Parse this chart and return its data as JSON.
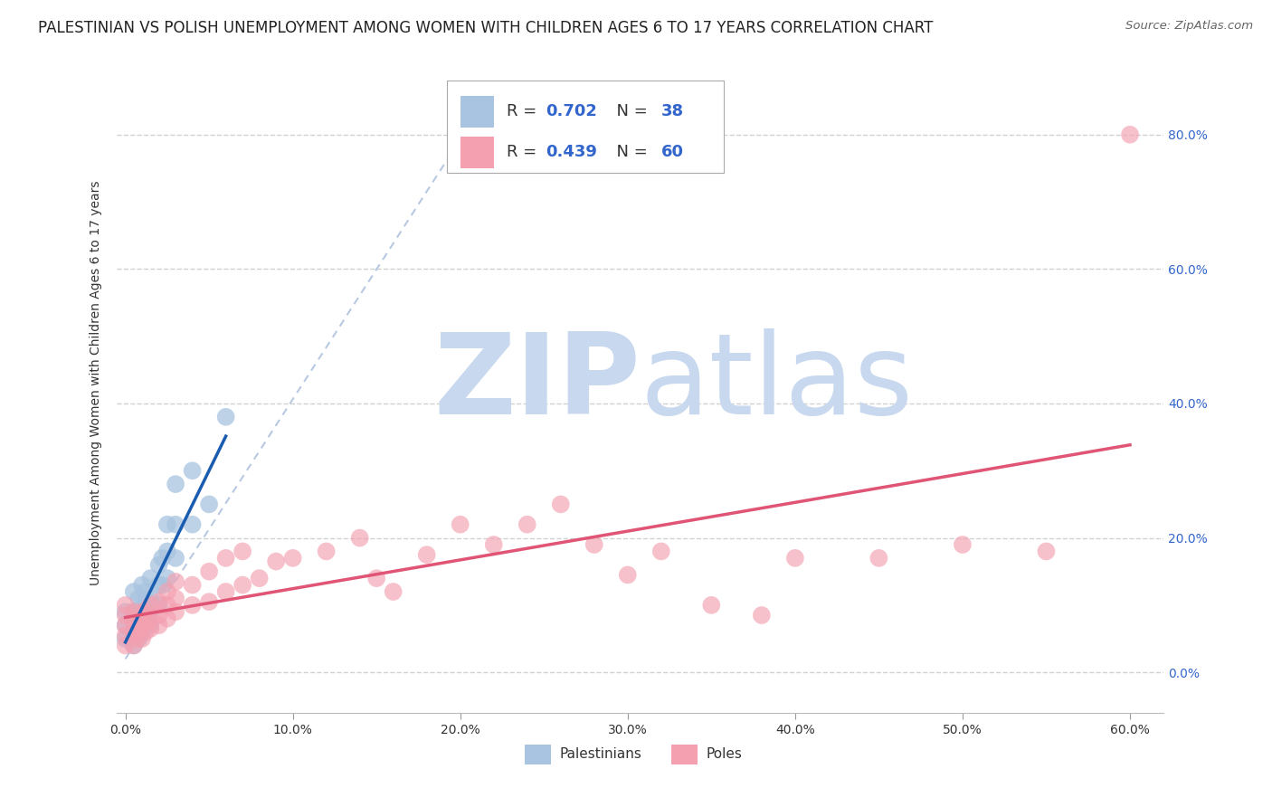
{
  "title": "PALESTINIAN VS POLISH UNEMPLOYMENT AMONG WOMEN WITH CHILDREN AGES 6 TO 17 YEARS CORRELATION CHART",
  "source": "Source: ZipAtlas.com",
  "ylabel": "Unemployment Among Women with Children Ages 6 to 17 years",
  "xlim": [
    -0.005,
    0.62
  ],
  "ylim": [
    -0.06,
    0.92
  ],
  "xticks": [
    0.0,
    0.1,
    0.2,
    0.3,
    0.4,
    0.5,
    0.6
  ],
  "yticks": [
    0.0,
    0.2,
    0.4,
    0.6,
    0.8
  ],
  "background_color": "#ffffff",
  "watermark_zip": "ZIP",
  "watermark_atlas": "atlas",
  "watermark_color": "#c8d8ee",
  "palestinian_color": "#a8c4e0",
  "polish_color": "#f4a0b0",
  "palestinian_line_color": "#1a5cb0",
  "polish_line_color": "#e05575",
  "diagonal_color": "#b0c4de",
  "legend_label1": "Palestinians",
  "legend_label2": "Poles",
  "title_fontsize": 12,
  "axis_label_fontsize": 10,
  "tick_fontsize": 10,
  "legend_fontsize": 13,
  "palestinian_x": [
    0.0,
    0.0,
    0.0,
    0.005,
    0.005,
    0.005,
    0.005,
    0.005,
    0.008,
    0.008,
    0.008,
    0.008,
    0.01,
    0.01,
    0.01,
    0.01,
    0.012,
    0.012,
    0.012,
    0.015,
    0.015,
    0.015,
    0.015,
    0.02,
    0.02,
    0.02,
    0.022,
    0.022,
    0.025,
    0.025,
    0.025,
    0.03,
    0.03,
    0.03,
    0.04,
    0.04,
    0.05,
    0.06
  ],
  "palestinian_y": [
    0.05,
    0.07,
    0.09,
    0.04,
    0.055,
    0.07,
    0.09,
    0.12,
    0.05,
    0.07,
    0.09,
    0.11,
    0.06,
    0.08,
    0.1,
    0.13,
    0.08,
    0.1,
    0.12,
    0.07,
    0.09,
    0.11,
    0.14,
    0.1,
    0.13,
    0.16,
    0.13,
    0.17,
    0.14,
    0.18,
    0.22,
    0.17,
    0.22,
    0.28,
    0.22,
    0.3,
    0.25,
    0.38
  ],
  "polish_x": [
    0.0,
    0.0,
    0.0,
    0.0,
    0.0,
    0.005,
    0.005,
    0.005,
    0.005,
    0.007,
    0.007,
    0.007,
    0.01,
    0.01,
    0.01,
    0.012,
    0.012,
    0.012,
    0.015,
    0.015,
    0.015,
    0.02,
    0.02,
    0.02,
    0.025,
    0.025,
    0.025,
    0.03,
    0.03,
    0.03,
    0.04,
    0.04,
    0.05,
    0.05,
    0.06,
    0.06,
    0.07,
    0.07,
    0.08,
    0.09,
    0.1,
    0.12,
    0.14,
    0.15,
    0.16,
    0.18,
    0.2,
    0.22,
    0.24,
    0.26,
    0.28,
    0.3,
    0.32,
    0.35,
    0.38,
    0.4,
    0.45,
    0.5,
    0.55,
    0.6
  ],
  "polish_y": [
    0.04,
    0.055,
    0.07,
    0.085,
    0.1,
    0.04,
    0.06,
    0.075,
    0.09,
    0.05,
    0.065,
    0.08,
    0.05,
    0.07,
    0.09,
    0.06,
    0.075,
    0.09,
    0.065,
    0.08,
    0.1,
    0.07,
    0.085,
    0.105,
    0.08,
    0.1,
    0.12,
    0.09,
    0.11,
    0.135,
    0.1,
    0.13,
    0.105,
    0.15,
    0.12,
    0.17,
    0.13,
    0.18,
    0.14,
    0.165,
    0.17,
    0.18,
    0.2,
    0.14,
    0.12,
    0.175,
    0.22,
    0.19,
    0.22,
    0.25,
    0.19,
    0.145,
    0.18,
    0.1,
    0.085,
    0.17,
    0.17,
    0.19,
    0.18,
    0.8
  ]
}
